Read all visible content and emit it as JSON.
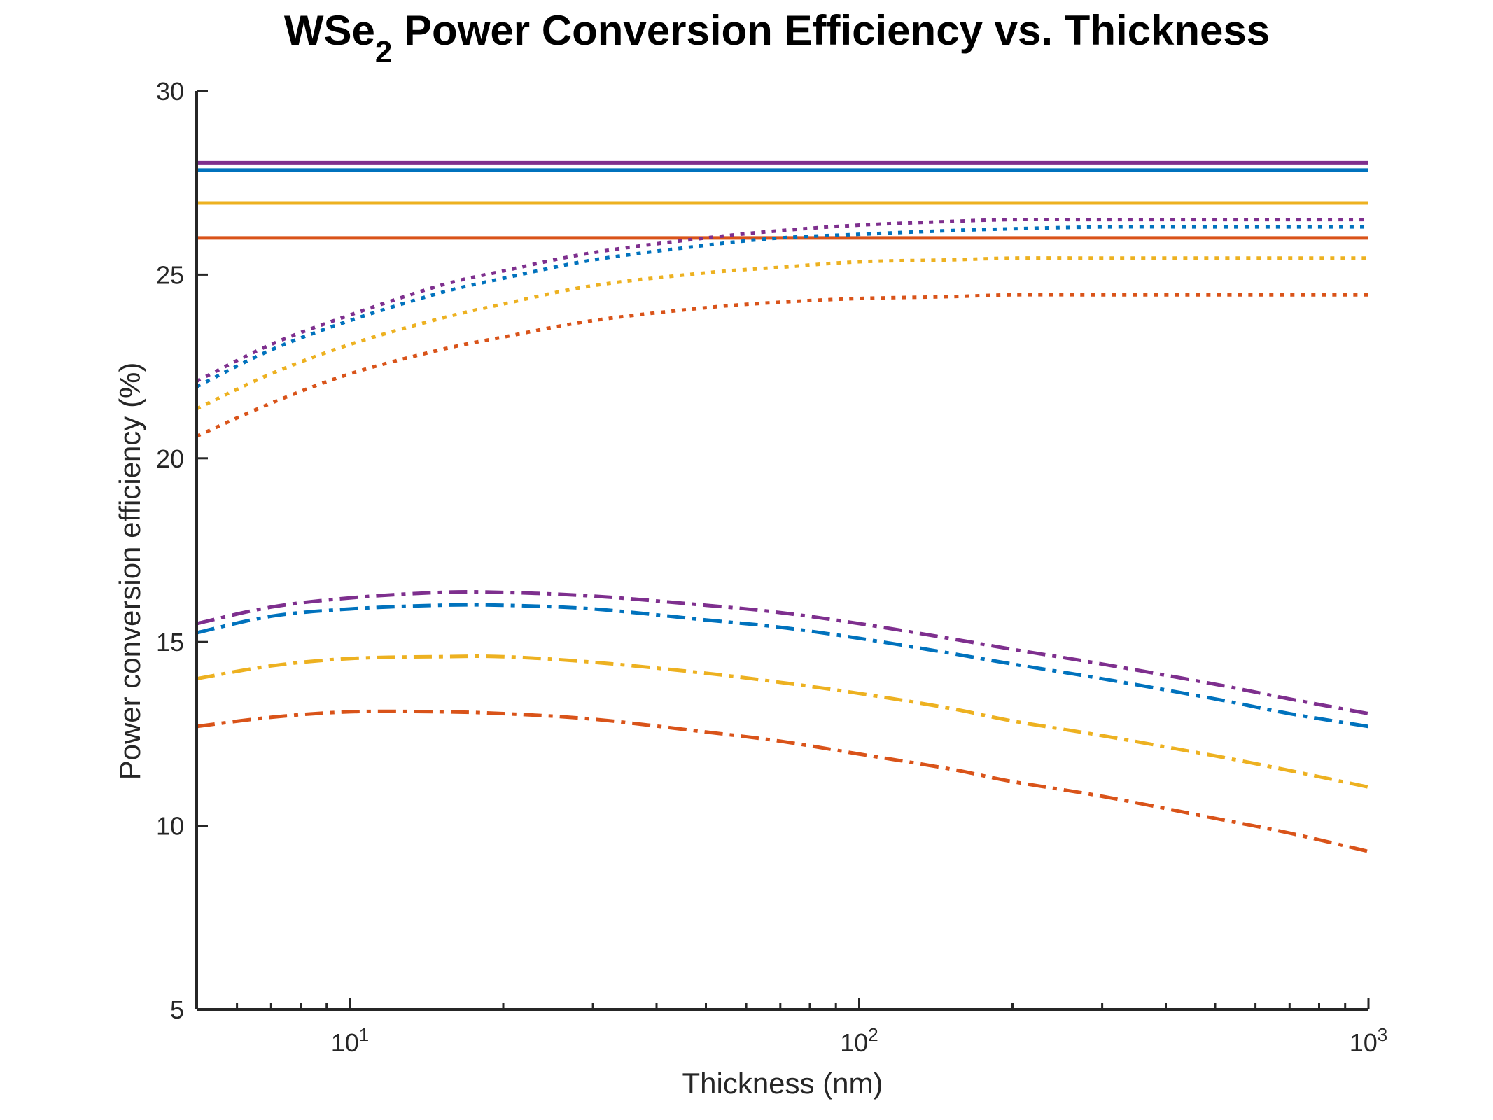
{
  "chart_data": {
    "type": "line",
    "title": "WSe",
    "title_subscript": "2",
    "title_rest": " Power Conversion Efficiency vs. Thickness",
    "xlabel": "Thickness (nm)",
    "ylabel": "Power conversion efficiency (%)",
    "xscale": "log",
    "xlim": [
      5,
      1000
    ],
    "ylim": [
      5,
      30
    ],
    "grid": false,
    "legend": "none",
    "x_ticks": [
      {
        "base": "10",
        "exp": "1",
        "value": 10
      },
      {
        "base": "10",
        "exp": "2",
        "value": 100
      },
      {
        "base": "10",
        "exp": "3",
        "value": 1000
      }
    ],
    "y_ticks": [
      "5",
      "10",
      "15",
      "20",
      "25",
      "30"
    ],
    "x": [
      5,
      7,
      10,
      15,
      20,
      30,
      50,
      70,
      100,
      150,
      200,
      300,
      500,
      700,
      1000
    ],
    "series": [
      {
        "color": "#7E2F8E",
        "style": "solid",
        "values": [
          28.05,
          28.05,
          28.05,
          28.05,
          28.05,
          28.05,
          28.05,
          28.05,
          28.05,
          28.05,
          28.05,
          28.05,
          28.05,
          28.05,
          28.05
        ]
      },
      {
        "color": "#0072BD",
        "style": "solid",
        "values": [
          27.85,
          27.85,
          27.85,
          27.85,
          27.85,
          27.85,
          27.85,
          27.85,
          27.85,
          27.85,
          27.85,
          27.85,
          27.85,
          27.85,
          27.85
        ]
      },
      {
        "color": "#EDB120",
        "style": "solid",
        "values": [
          26.95,
          26.95,
          26.95,
          26.95,
          26.95,
          26.95,
          26.95,
          26.95,
          26.95,
          26.95,
          26.95,
          26.95,
          26.95,
          26.95,
          26.95
        ]
      },
      {
        "color": "#D95319",
        "style": "solid",
        "values": [
          26.0,
          26.0,
          26.0,
          26.0,
          26.0,
          26.0,
          26.0,
          26.0,
          26.0,
          26.0,
          26.0,
          26.0,
          26.0,
          26.0,
          26.0
        ]
      },
      {
        "color": "#7E2F8E",
        "style": "dotted",
        "values": [
          22.1,
          23.1,
          23.9,
          24.7,
          25.1,
          25.6,
          26.0,
          26.2,
          26.35,
          26.45,
          26.5,
          26.5,
          26.5,
          26.5,
          26.5
        ]
      },
      {
        "color": "#0072BD",
        "style": "dotted",
        "values": [
          21.95,
          22.95,
          23.75,
          24.5,
          24.9,
          25.4,
          25.8,
          26.0,
          26.1,
          26.2,
          26.25,
          26.3,
          26.3,
          26.3,
          26.3
        ]
      },
      {
        "color": "#EDB120",
        "style": "dotted",
        "values": [
          21.35,
          22.3,
          23.1,
          23.8,
          24.2,
          24.7,
          25.05,
          25.2,
          25.35,
          25.4,
          25.45,
          25.45,
          25.45,
          25.45,
          25.45
        ]
      },
      {
        "color": "#D95319",
        "style": "dotted",
        "values": [
          20.6,
          21.5,
          22.3,
          22.95,
          23.3,
          23.75,
          24.1,
          24.25,
          24.35,
          24.4,
          24.45,
          24.45,
          24.45,
          24.45,
          24.45
        ]
      },
      {
        "color": "#7E2F8E",
        "style": "dashdot",
        "values": [
          15.5,
          15.95,
          16.2,
          16.35,
          16.35,
          16.25,
          16.0,
          15.8,
          15.5,
          15.1,
          14.8,
          14.4,
          13.85,
          13.45,
          13.05
        ]
      },
      {
        "color": "#0072BD",
        "style": "dashdot",
        "values": [
          15.25,
          15.7,
          15.9,
          16.0,
          16.0,
          15.9,
          15.6,
          15.4,
          15.1,
          14.7,
          14.4,
          14.0,
          13.45,
          13.05,
          12.7
        ]
      },
      {
        "color": "#EDB120",
        "style": "dashdot",
        "values": [
          14.0,
          14.35,
          14.55,
          14.6,
          14.6,
          14.45,
          14.15,
          13.9,
          13.6,
          13.2,
          12.85,
          12.45,
          11.9,
          11.5,
          11.05
        ]
      },
      {
        "color": "#D95319",
        "style": "dashdot",
        "values": [
          12.7,
          12.95,
          13.1,
          13.1,
          13.05,
          12.9,
          12.55,
          12.3,
          11.95,
          11.55,
          11.2,
          10.8,
          10.2,
          9.8,
          9.3
        ]
      }
    ]
  }
}
